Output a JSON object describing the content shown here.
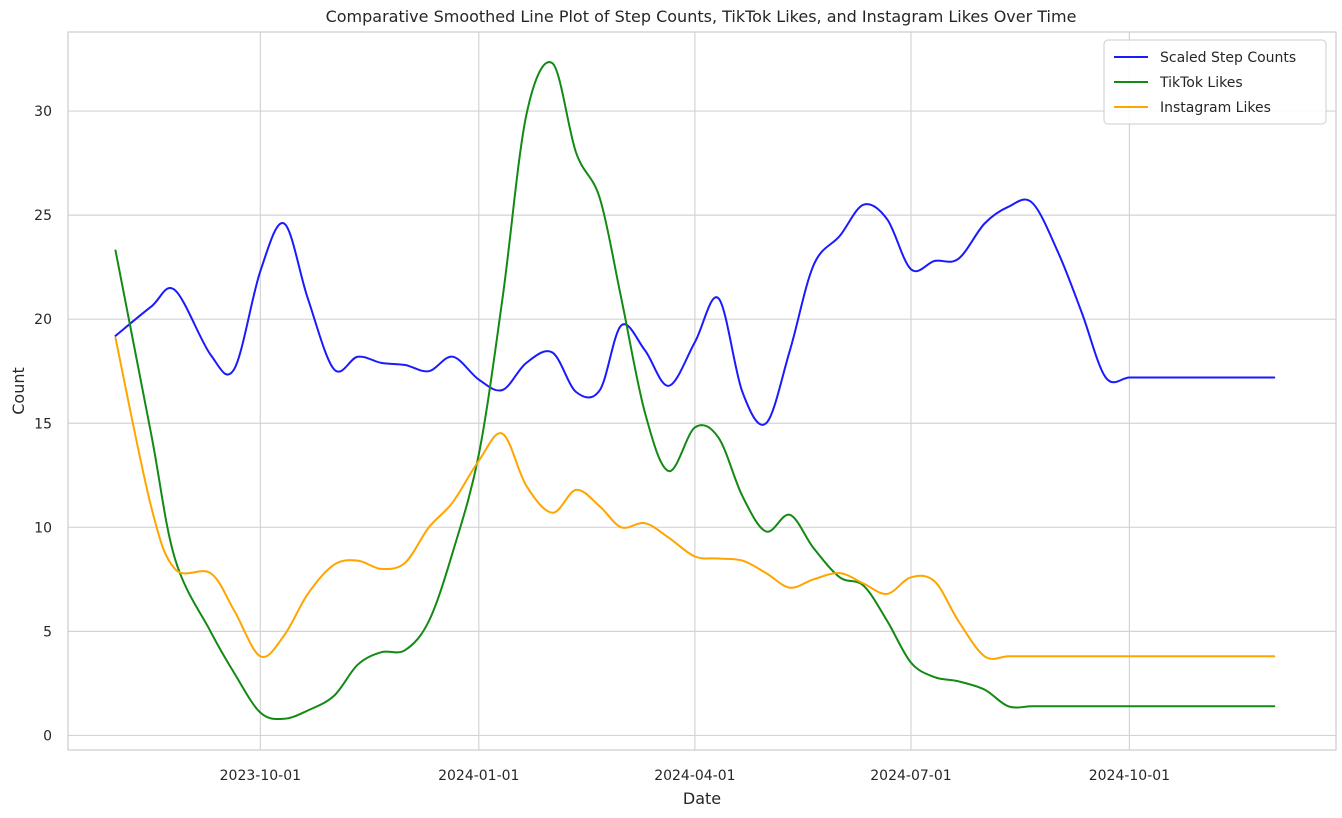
{
  "chart_data": {
    "type": "line",
    "title": "Comparative Smoothed Line Plot of Step Counts, TikTok Likes, and Instagram Likes Over Time",
    "xlabel": "Date",
    "ylabel": "Count",
    "x_type": "date",
    "xlim": [
      "2023-07-12",
      "2024-12-27"
    ],
    "ylim": [
      -0.7,
      33.8
    ],
    "x_ticks": [
      "2023-10-01",
      "2024-01-01",
      "2024-04-01",
      "2024-07-01",
      "2024-10-01"
    ],
    "y_ticks": [
      0,
      5,
      10,
      15,
      20,
      25,
      30
    ],
    "grid": true,
    "legend_position": "top-right",
    "x": [
      "2023-08-01",
      "2023-08-16",
      "2023-08-26",
      "2023-09-10",
      "2023-09-20",
      "2023-10-01",
      "2023-10-11",
      "2023-10-21",
      "2023-11-01",
      "2023-11-11",
      "2023-11-21",
      "2023-12-01",
      "2023-12-11",
      "2023-12-21",
      "2024-01-01",
      "2024-01-11",
      "2024-01-21",
      "2024-02-01",
      "2024-02-11",
      "2024-02-21",
      "2024-03-01",
      "2024-03-11",
      "2024-03-21",
      "2024-04-01",
      "2024-04-11",
      "2024-04-21",
      "2024-05-01",
      "2024-05-11",
      "2024-05-21",
      "2024-06-01",
      "2024-06-11",
      "2024-06-21",
      "2024-07-01",
      "2024-07-11",
      "2024-07-21",
      "2024-08-01",
      "2024-08-11",
      "2024-08-21",
      "2024-09-01",
      "2024-09-11",
      "2024-09-21",
      "2024-10-01",
      "2024-10-11",
      "2024-10-21",
      "2024-11-01",
      "2024-11-11",
      "2024-11-21",
      "2024-12-01"
    ],
    "series": [
      {
        "name": "Scaled Step Counts",
        "color": "#1a1aff",
        "values": [
          19.2,
          20.6,
          21.4,
          18.3,
          17.6,
          22.3,
          24.6,
          21.0,
          17.6,
          18.2,
          17.9,
          17.8,
          17.5,
          18.2,
          17.1,
          16.6,
          17.9,
          18.4,
          16.5,
          16.6,
          19.7,
          18.5,
          16.8,
          18.9,
          21.0,
          16.5,
          15.0,
          18.5,
          22.6,
          24.0,
          25.5,
          24.8,
          22.4,
          22.8,
          22.9,
          24.6,
          25.4,
          25.6,
          23.2,
          20.3,
          17.2,
          17.2,
          17.2,
          17.2,
          17.2,
          17.2,
          17.2,
          17.2
        ]
      },
      {
        "name": "TikTok Likes",
        "color": "#138a13",
        "values": [
          23.3,
          14.5,
          8.5,
          5.0,
          3.0,
          1.1,
          0.8,
          1.2,
          1.9,
          3.4,
          4.0,
          4.1,
          5.5,
          8.8,
          13.5,
          21.0,
          29.8,
          32.3,
          28.0,
          25.8,
          21.0,
          15.5,
          12.7,
          14.8,
          14.3,
          11.5,
          9.8,
          10.6,
          9.0,
          7.6,
          7.2,
          5.5,
          3.5,
          2.8,
          2.6,
          2.2,
          1.4,
          1.4,
          1.4,
          1.4,
          1.4,
          1.4,
          1.4,
          1.4,
          1.4,
          1.4,
          1.4,
          1.4
        ]
      },
      {
        "name": "Instagram Likes",
        "color": "#ffa500",
        "values": [
          19.1,
          11.0,
          8.0,
          7.8,
          6.0,
          3.8,
          4.8,
          6.8,
          8.2,
          8.4,
          8.0,
          8.3,
          10.0,
          11.2,
          13.2,
          14.5,
          12.0,
          10.7,
          11.8,
          11.0,
          10.0,
          10.2,
          9.5,
          8.6,
          8.5,
          8.4,
          7.8,
          7.1,
          7.5,
          7.8,
          7.3,
          6.8,
          7.6,
          7.4,
          5.5,
          3.8,
          3.8,
          3.8,
          3.8,
          3.8,
          3.8,
          3.8,
          3.8,
          3.8,
          3.8,
          3.8,
          3.8,
          3.8
        ]
      }
    ]
  }
}
